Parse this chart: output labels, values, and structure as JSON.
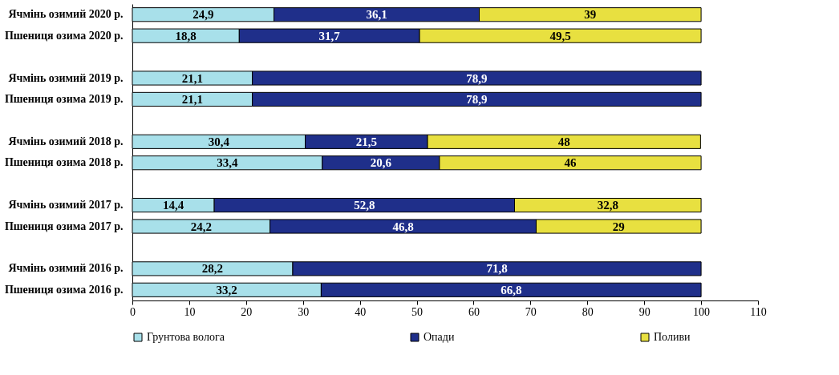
{
  "chart_data": {
    "type": "bar",
    "orientation": "horizontal",
    "stacked": true,
    "categories": [
      "Ячмінь озимий 2020 р.",
      "Пшениця озима 2020 р.",
      null,
      "Ячмінь озимий 2019 р.",
      "Пшениця озима 2019 р.",
      null,
      "Ячмінь озимий 2018 р.",
      "Пшениця озима 2018 р.",
      null,
      "Ячмінь озимий 2017 р.",
      "Пшениця озима 2017 р.",
      null,
      "Ячмінь озимий 2016 р.",
      "Пшениця озима 2016 р."
    ],
    "series": [
      {
        "name": "Грунтова волога",
        "color": "#a8e0ea",
        "values": [
          24.9,
          18.8,
          null,
          21.1,
          21.1,
          null,
          30.4,
          33.4,
          null,
          14.4,
          24.2,
          null,
          28.2,
          33.2
        ],
        "value_labels": [
          "24,9",
          "18,8",
          null,
          "21,1",
          "21,1",
          null,
          "30,4",
          "33,4",
          null,
          "14,4",
          "24,2",
          null,
          "28,2",
          "33,2"
        ]
      },
      {
        "name": "Опади",
        "color": "#1f2f8a",
        "values": [
          36.1,
          31.7,
          null,
          78.9,
          78.9,
          null,
          21.5,
          20.6,
          null,
          52.8,
          46.8,
          null,
          71.8,
          66.8
        ],
        "value_labels": [
          "36,1",
          "31,7",
          null,
          "78,9",
          "78,9",
          null,
          "21,5",
          "20,6",
          null,
          "52,8",
          "46,8",
          null,
          "71,8",
          "66,8"
        ]
      },
      {
        "name": "Поливи",
        "color": "#e8e040",
        "values": [
          39,
          49.5,
          null,
          null,
          null,
          null,
          48,
          46,
          null,
          32.8,
          29,
          null,
          null,
          null
        ],
        "value_labels": [
          "39",
          "49,5",
          null,
          null,
          null,
          null,
          "48",
          "46",
          null,
          "32,8",
          "29",
          null,
          null,
          null
        ]
      }
    ],
    "xlim": [
      0,
      110
    ],
    "xticks": [
      0,
      10,
      20,
      30,
      40,
      50,
      60,
      70,
      80,
      90,
      100,
      110
    ],
    "grid": false,
    "legend": "bottom"
  }
}
